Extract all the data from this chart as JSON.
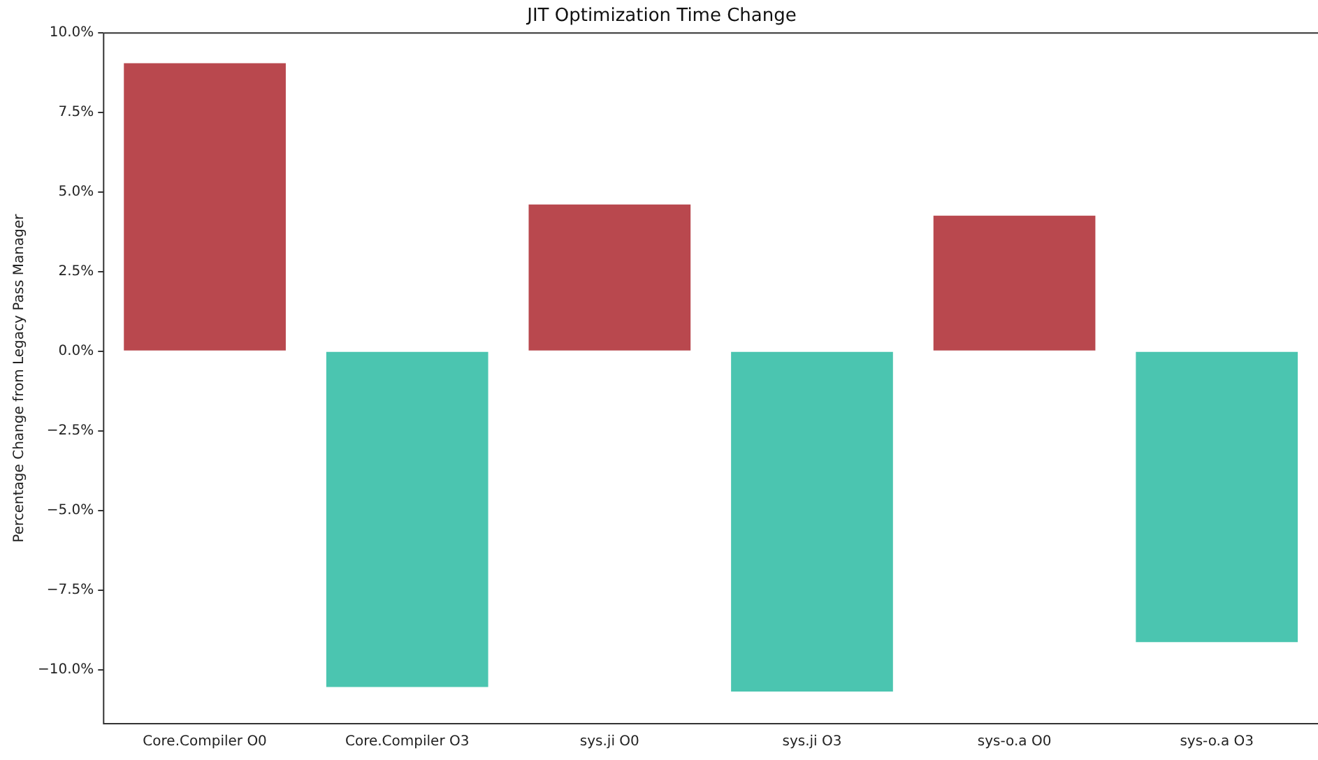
{
  "chart_data": {
    "type": "bar",
    "title": "JIT Optimization Time Change",
    "ylabel": "Percentage Change from Legacy Pass Manager",
    "categories": [
      "Core.Compiler O0",
      "Core.Compiler O3",
      "sys.ji O0",
      "sys.ji O3",
      "sys-o.a O0",
      "sys-o.a O3"
    ],
    "values": [
      9.05,
      -10.55,
      4.61,
      -10.69,
      4.26,
      -9.14
    ],
    "colors": [
      "#b9484e",
      "#4bc5b0",
      "#b9484e",
      "#4bc5b0",
      "#b9484e",
      "#4bc5b0"
    ],
    "ylim": [
      -11.7,
      10
    ],
    "yticks": [
      {
        "value": -10,
        "label": "−10.0%"
      },
      {
        "value": -7.5,
        "label": "−7.5%"
      },
      {
        "value": -5,
        "label": "−5.0%"
      },
      {
        "value": -2.5,
        "label": "−2.5%"
      },
      {
        "value": 0,
        "label": "0.0%"
      },
      {
        "value": 2.5,
        "label": "2.5%"
      },
      {
        "value": 5,
        "label": "5.0%"
      },
      {
        "value": 7.5,
        "label": "7.5%"
      },
      {
        "value": 10,
        "label": "10.0%"
      }
    ],
    "grid": false,
    "legend": false
  }
}
